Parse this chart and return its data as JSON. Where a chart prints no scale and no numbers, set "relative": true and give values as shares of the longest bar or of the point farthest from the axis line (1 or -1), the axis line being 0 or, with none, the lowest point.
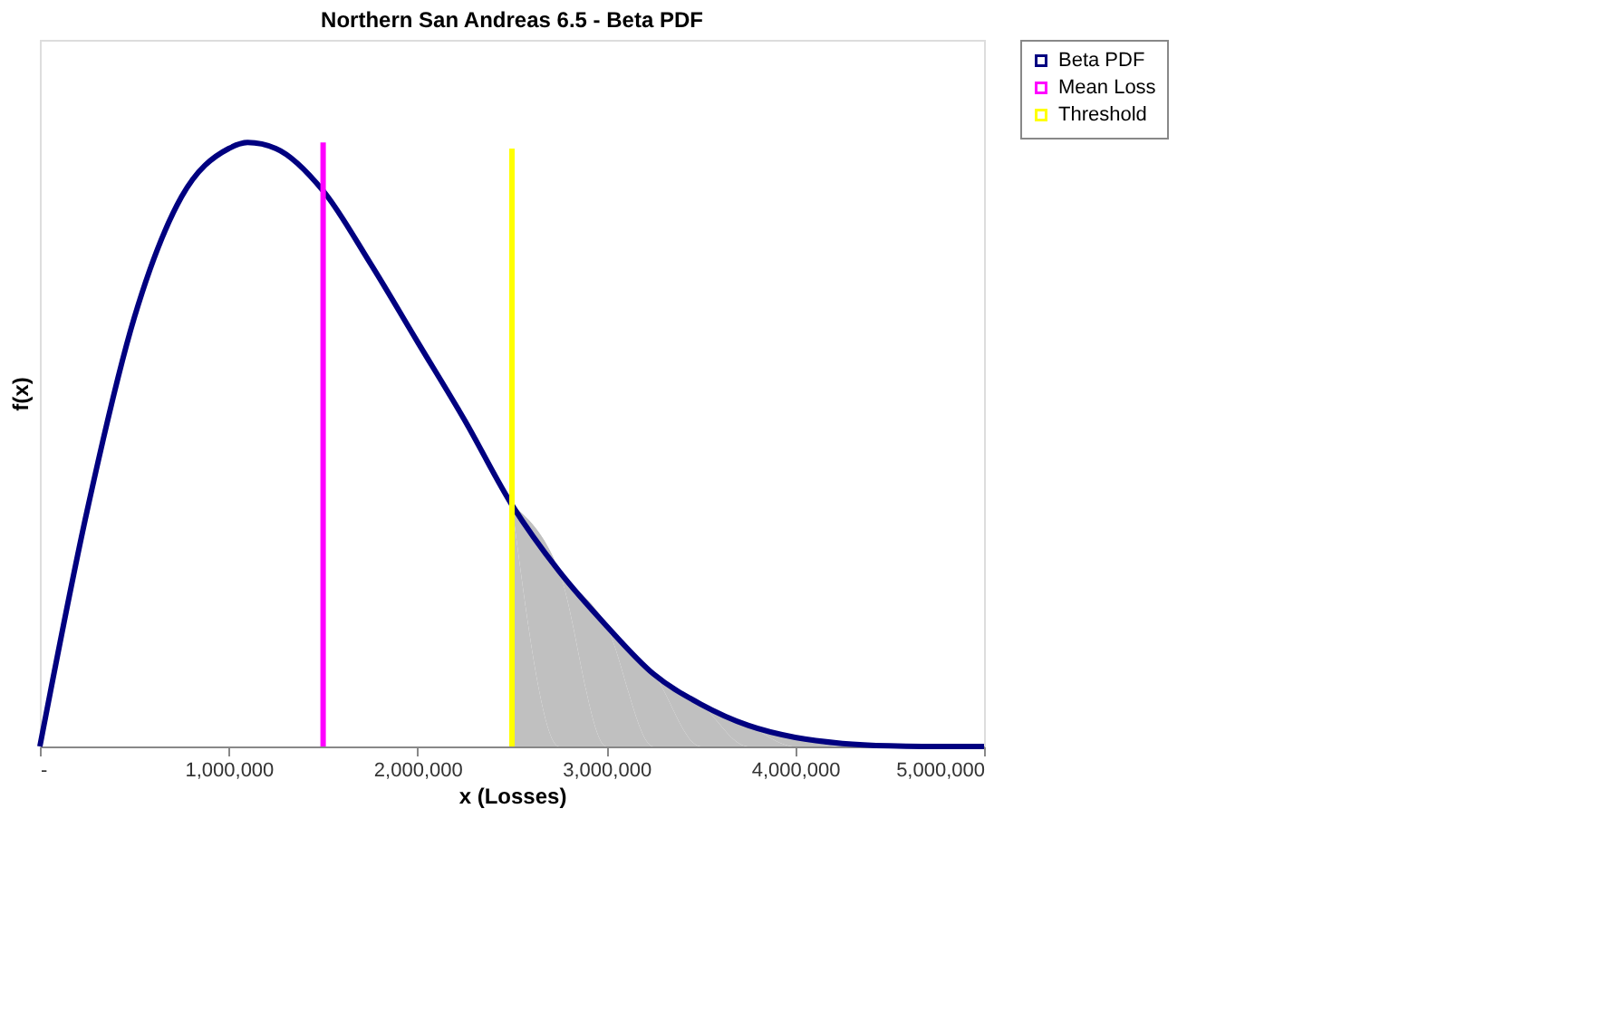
{
  "chart_data": {
    "type": "line",
    "title": "Northern San Andreas 6.5 - Beta PDF",
    "xlabel": "x (Losses)",
    "ylabel": "f(x)",
    "relative": true,
    "xlim": [
      0,
      5000000
    ],
    "xticks": [
      {
        "value": 0,
        "label": "-"
      },
      {
        "value": 1000000,
        "label": "1,000,000"
      },
      {
        "value": 2000000,
        "label": "2,000,000"
      },
      {
        "value": 3000000,
        "label": "3,000,000"
      },
      {
        "value": 4000000,
        "label": "4,000,000"
      },
      {
        "value": 5000000,
        "label": "5,000,000"
      }
    ],
    "grid": false,
    "legend": "right",
    "marker": "none",
    "line_style": "solid",
    "series": [
      {
        "type": "area",
        "color": "#c0c0c0",
        "x": [
          2500000,
          2750000,
          3000000,
          3250000,
          3500000,
          3750000,
          4000000,
          4250000,
          4500000,
          4750000,
          5000000
        ],
        "values": [
          0.4,
          0.29,
          0.2,
          0.12,
          0.07,
          0.035,
          0.015,
          0.005,
          0.001,
          0,
          0
        ]
      },
      {
        "name": "Beta PDF",
        "color": "#000080",
        "x": [
          0,
          250000,
          500000,
          750000,
          1000000,
          1100000,
          1250000,
          1500000,
          1750000,
          2000000,
          2250000,
          2500000,
          2750000,
          3000000,
          3250000,
          3500000,
          3750000,
          4000000,
          4250000,
          4500000,
          4750000,
          5000000
        ],
        "values": [
          0,
          0.39,
          0.71,
          0.91,
          0.99,
          1,
          0.99,
          0.92,
          0.8,
          0.67,
          0.54,
          0.4,
          0.29,
          0.2,
          0.12,
          0.07,
          0.035,
          0.015,
          0.005,
          0.001,
          0,
          0
        ]
      },
      {
        "type": "line",
        "name": "Mean Loss",
        "color": "#ff00ff",
        "x": [
          1500000,
          1500000
        ],
        "values": [
          0,
          1.0
        ]
      },
      {
        "type": "line",
        "name": "Threshold",
        "color": "#ffff00",
        "x": [
          2500000,
          2500000
        ],
        "values": [
          0,
          0.99
        ]
      }
    ]
  }
}
